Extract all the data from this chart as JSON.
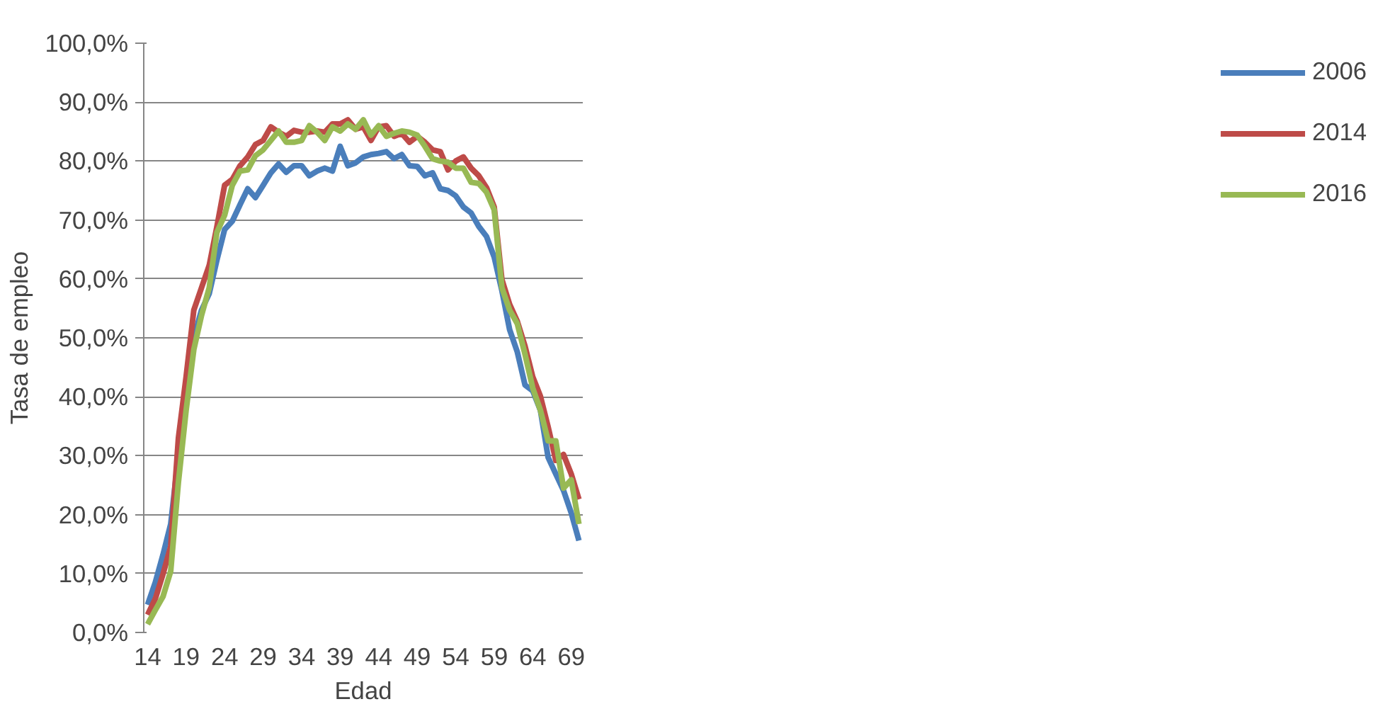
{
  "chart_data": {
    "type": "line",
    "xlabel": "Edad",
    "ylabel": "Tasa de empleo",
    "categories": [
      "14",
      null,
      null,
      null,
      null,
      "19",
      null,
      null,
      null,
      null,
      "24",
      null,
      null,
      null,
      null,
      "29",
      null,
      null,
      null,
      null,
      "34",
      null,
      null,
      null,
      null,
      "39",
      null,
      null,
      null,
      null,
      "44",
      null,
      null,
      null,
      null,
      "49",
      null,
      null,
      null,
      null,
      "54",
      null,
      null,
      null,
      null,
      "59",
      null,
      null,
      null,
      null,
      "64",
      null,
      null,
      null,
      null,
      "69",
      null
    ],
    "series": [
      {
        "name": "2006",
        "color": "#4a7ebb",
        "values": [
          4.7,
          8.5,
          13.2,
          18.4,
          30.0,
          41.0,
          50.0,
          54.7,
          57.5,
          63.2,
          68.4,
          69.8,
          72.6,
          75.3,
          73.8,
          75.9,
          78.0,
          79.5,
          78.1,
          79.2,
          79.2,
          77.5,
          78.3,
          78.8,
          78.3,
          82.5,
          79.2,
          79.7,
          80.7,
          81.1,
          81.3,
          81.6,
          80.4,
          81.1,
          79.2,
          79.1,
          77.5,
          78.0,
          75.3,
          75.0,
          74.1,
          72.2,
          71.2,
          68.9,
          67.2,
          63.7,
          58.0,
          51.4,
          47.6,
          42.0,
          41.0,
          37.7,
          29.7,
          26.9,
          24.1,
          20.3,
          15.6
        ]
      },
      {
        "name": "2014",
        "color": "#be4b48",
        "values": [
          3.0,
          5.7,
          9.9,
          14.6,
          33.0,
          43.4,
          54.7,
          58.5,
          62.3,
          68.9,
          75.9,
          76.9,
          79.2,
          80.7,
          82.8,
          83.5,
          85.8,
          84.9,
          84.2,
          85.2,
          84.9,
          84.9,
          85.1,
          84.9,
          86.3,
          86.3,
          87.0,
          85.4,
          85.8,
          83.5,
          85.8,
          86.0,
          84.2,
          84.7,
          83.2,
          84.2,
          83.2,
          81.9,
          81.6,
          78.5,
          80.0,
          80.7,
          78.8,
          77.5,
          75.5,
          72.2,
          59.9,
          55.7,
          52.8,
          48.6,
          43.4,
          40.1,
          34.9,
          29.2,
          30.2,
          26.9,
          22.6
        ]
      },
      {
        "name": "2016",
        "color": "#98b954",
        "values": [
          1.4,
          3.8,
          6.1,
          10.4,
          25.5,
          37.7,
          48.0,
          53.8,
          58.5,
          67.9,
          70.8,
          75.9,
          78.3,
          78.5,
          80.9,
          81.9,
          83.5,
          85.1,
          83.2,
          83.2,
          83.5,
          86.0,
          84.9,
          83.5,
          85.8,
          85.1,
          86.3,
          85.4,
          87.0,
          84.4,
          86.0,
          84.2,
          84.7,
          85.1,
          84.9,
          84.4,
          82.5,
          80.4,
          80.0,
          79.8,
          78.8,
          78.8,
          76.4,
          76.2,
          74.7,
          71.7,
          58.5,
          54.7,
          52.4,
          47.2,
          41.5,
          37.7,
          32.5,
          32.5,
          24.5,
          25.9,
          18.4
        ]
      }
    ],
    "ylim": [
      0,
      100
    ],
    "yticks": [
      {
        "value": 0,
        "label": "0,0%"
      },
      {
        "value": 10,
        "label": "10,0%"
      },
      {
        "value": 20,
        "label": "20,0%"
      },
      {
        "value": 30,
        "label": "30,0%"
      },
      {
        "value": 40,
        "label": "40,0%"
      },
      {
        "value": 50,
        "label": "50,0%"
      },
      {
        "value": 60,
        "label": "60,0%"
      },
      {
        "value": 70,
        "label": "70,0%"
      },
      {
        "value": 80,
        "label": "80,0%"
      },
      {
        "value": 90,
        "label": "90,0%"
      },
      {
        "value": 100,
        "label": "100,0%"
      }
    ],
    "grid": "y",
    "legend": "right",
    "marker": "none",
    "line_style": "solid"
  }
}
